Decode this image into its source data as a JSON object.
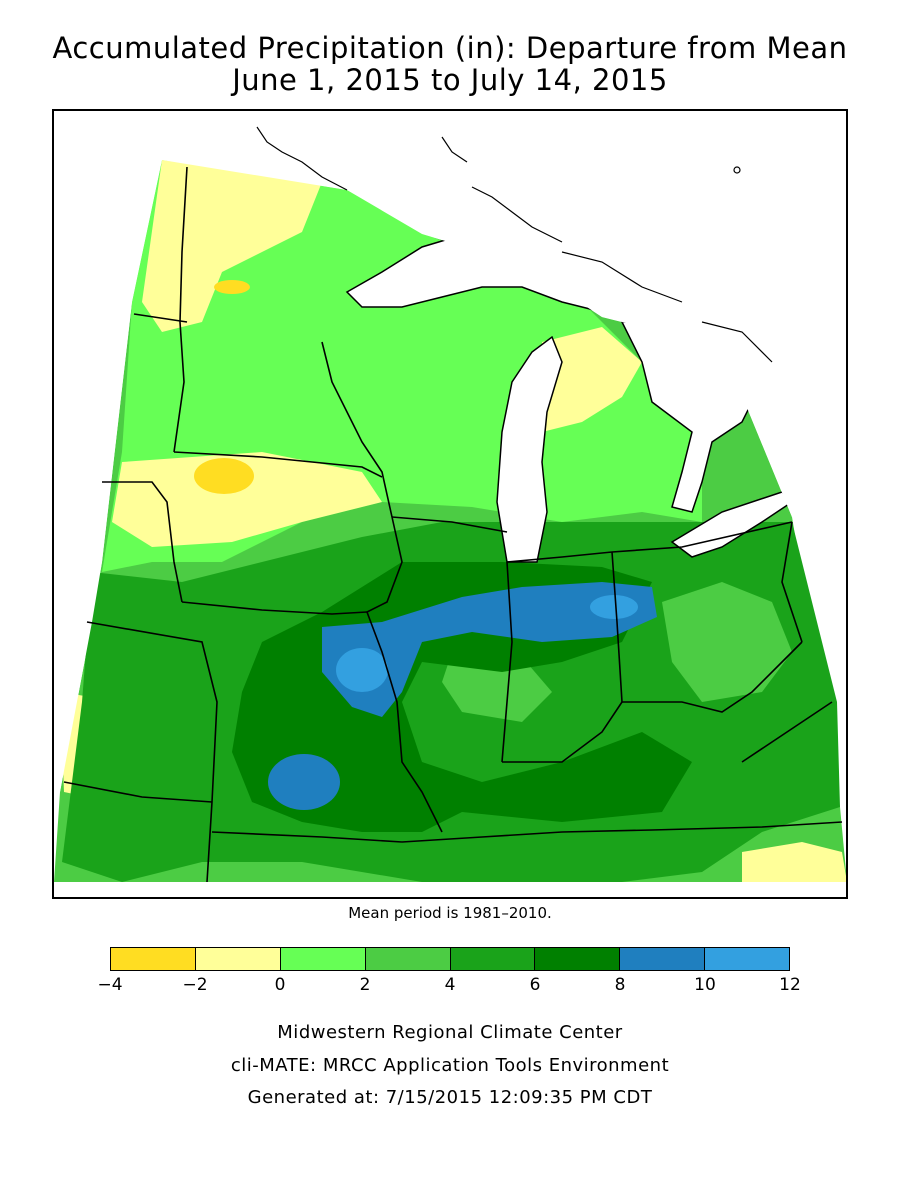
{
  "title_line1": "Accumulated Precipitation (in): Departure from Mean",
  "title_line2": "June 1, 2015 to July 14, 2015",
  "mean_note": "Mean period is 1981–2010.",
  "legend": {
    "bins": [
      {
        "from": -4,
        "to": -2,
        "color": "#ffdd22"
      },
      {
        "from": -2,
        "to": 0,
        "color": "#ffff99"
      },
      {
        "from": 0,
        "to": 2,
        "color": "#66ff55"
      },
      {
        "from": 2,
        "to": 4,
        "color": "#4ccc44"
      },
      {
        "from": 4,
        "to": 6,
        "color": "#1aa31a"
      },
      {
        "from": 6,
        "to": 8,
        "color": "#008000"
      },
      {
        "from": 8,
        "to": 10,
        "color": "#1f7fbf"
      },
      {
        "from": 10,
        "to": 12,
        "color": "#33a0e0"
      }
    ],
    "tick_labels": [
      "−4",
      "−2",
      "0",
      "2",
      "4",
      "6",
      "8",
      "10",
      "12"
    ]
  },
  "credits": {
    "line1": "Midwestern Regional Climate Center",
    "line2": "cli-MATE: MRCC Application Tools Environment",
    "line3": "Generated at: 7/15/2015 12:09:35 PM CDT"
  }
}
